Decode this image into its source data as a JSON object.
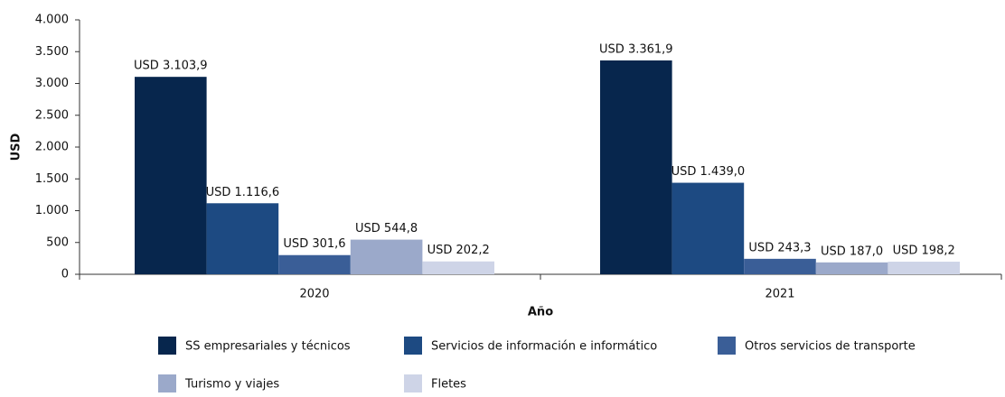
{
  "chart_data": {
    "type": "bar",
    "categories": [
      "2020",
      "2021"
    ],
    "series": [
      {
        "name": "SS empresariales y técnicos",
        "color": "#07264d",
        "values": [
          3103.9,
          3361.9
        ],
        "value_labels": [
          "USD 3.103,9",
          "USD 3.361,9"
        ]
      },
      {
        "name": "Servicios de información e informático",
        "color": "#1d4a82",
        "values": [
          1116.6,
          1439.0
        ],
        "value_labels": [
          "USD 1.116,6",
          "USD 1.439,0"
        ]
      },
      {
        "name": "Otros servicios de transporte",
        "color": "#3a5e97",
        "values": [
          301.6,
          243.3
        ],
        "value_labels": [
          "USD 301,6",
          "USD 243,3"
        ]
      },
      {
        "name": "Turismo y viajes",
        "color": "#9ba9ca",
        "values": [
          544.8,
          187.0
        ],
        "value_labels": [
          "USD 544,8",
          "USD 187,0"
        ]
      },
      {
        "name": "Fletes",
        "color": "#ced4e7",
        "values": [
          202.2,
          198.2
        ],
        "value_labels": [
          "USD 202,2",
          "USD 198,2"
        ]
      }
    ],
    "ylabel": "USD",
    "xlabel": "Año",
    "ylim": [
      0,
      4000
    ],
    "yticks": [
      0,
      500,
      {
        "value": 1000,
        "label": "1.000"
      },
      {
        "value": 1500,
        "label": "1.500"
      },
      {
        "value": 2000,
        "label": "2.000"
      },
      {
        "value": 2500,
        "label": "2.500"
      },
      {
        "value": 3000,
        "label": "3.000"
      },
      {
        "value": 3500,
        "label": "3.500"
      },
      {
        "value": 4000,
        "label": "4.000"
      }
    ],
    "legend": "bottom"
  }
}
